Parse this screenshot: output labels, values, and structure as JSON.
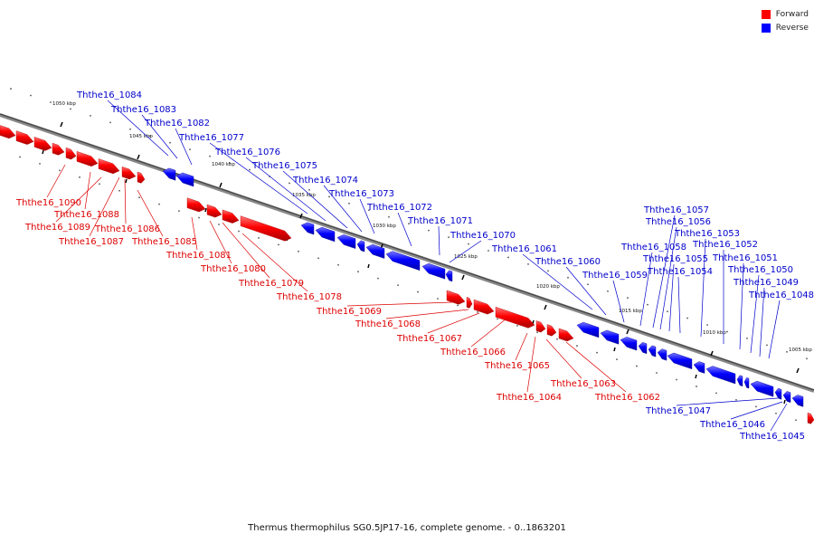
{
  "legend": {
    "forward": {
      "label": "Forward",
      "color": "#ff0000"
    },
    "reverse": {
      "label": "Reverse",
      "color": "#0000ff"
    }
  },
  "caption": "Thermus thermophilus SG0.5JP17-16, complete genome. - 0..1863201",
  "ticks": [
    "1050 kbp",
    "1045 kbp",
    "1040 kbp",
    "1035 kbp",
    "1030 kbp",
    "1025 kbp",
    "1020 kbp",
    "1015 kbp",
    "1010 kbp",
    "1005 kbp"
  ],
  "genes_forward": [
    "Ththe16_1090",
    "Ththe16_1089",
    "Ththe16_1088",
    "Ththe16_1087",
    "Ththe16_1086",
    "Ththe16_1085",
    "Ththe16_1081",
    "Ththe16_1080",
    "Ththe16_1079",
    "Ththe16_1078",
    "Ththe16_1069",
    "Ththe16_1068",
    "Ththe16_1067",
    "Ththe16_1066",
    "Ththe16_1065",
    "Ththe16_1064",
    "Ththe16_1063",
    "Ththe16_1062"
  ],
  "genes_reverse": [
    "Ththe16_1084",
    "Ththe16_1083",
    "Ththe16_1082",
    "Ththe16_1077",
    "Ththe16_1076",
    "Ththe16_1075",
    "Ththe16_1074",
    "Ththe16_1073",
    "Ththe16_1072",
    "Ththe16_1071",
    "Ththe16_1070",
    "Ththe16_1061",
    "Ththe16_1060",
    "Ththe16_1059",
    "Ththe16_1058",
    "Ththe16_1057",
    "Ththe16_1056",
    "Ththe16_1055",
    "Ththe16_1054",
    "Ththe16_1053",
    "Ththe16_1052",
    "Ththe16_1051",
    "Ththe16_1050",
    "Ththe16_1049",
    "Ththe16_1048",
    "Ththe16_1047",
    "Ththe16_1046",
    "Ththe16_1045"
  ]
}
